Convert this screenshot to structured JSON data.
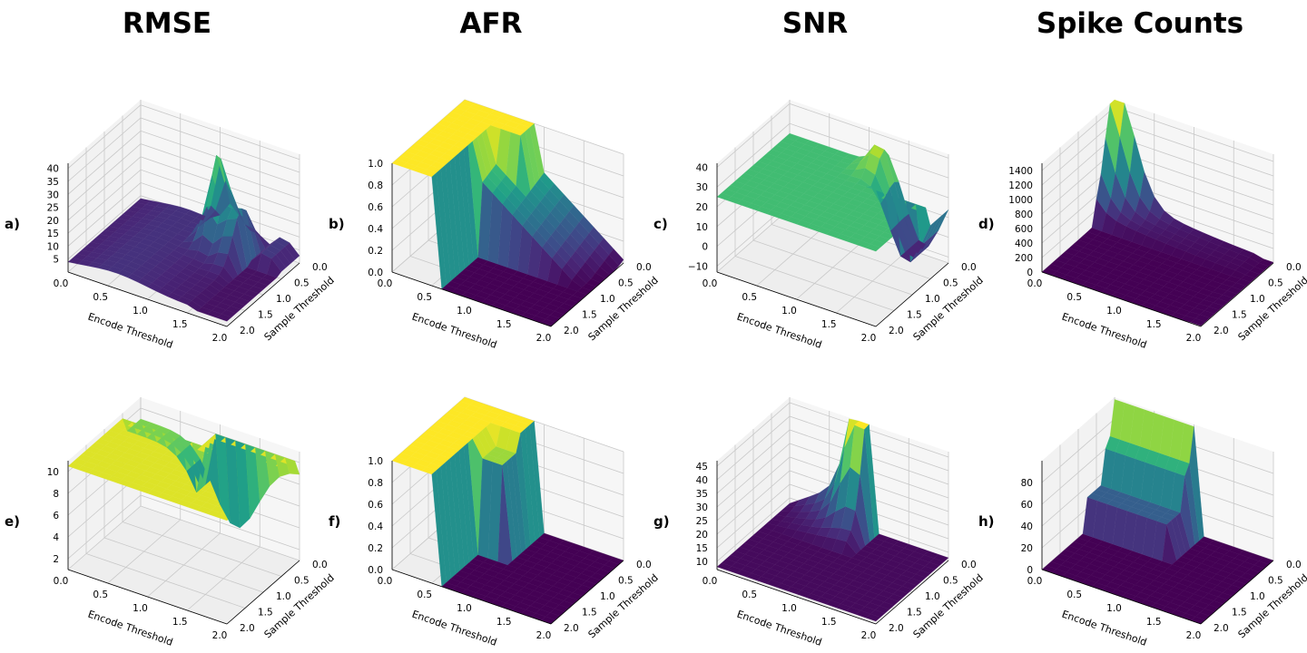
{
  "columns": [
    "RMSE",
    "AFR",
    "SNR",
    "Spike Counts"
  ],
  "axis_labels": {
    "x": "Encode Threshold",
    "y": "Sample Threshold"
  },
  "chart_data": [
    {
      "panel": "a)",
      "type": "surface",
      "metric": "RMSE",
      "xlabel": "Encode Threshold",
      "ylabel": "Sample Threshold",
      "xlim": [
        0,
        2
      ],
      "ylim": [
        0,
        2
      ],
      "zlim": [
        0,
        42
      ],
      "xticks": [
        "0.0",
        "0.5",
        "1.0",
        "1.5",
        "2.0"
      ],
      "yticks": [
        "0.0",
        "0.5",
        "1.0",
        "1.5",
        "2.0"
      ],
      "zticks": [
        "5",
        "10",
        "15",
        "20",
        "25",
        "30",
        "35",
        "40"
      ],
      "zticks_v": [
        5,
        10,
        15,
        20,
        25,
        30,
        35,
        40
      ],
      "surface": {
        "base": 2,
        "ridge_height": 36,
        "ridge_x": 1.2,
        "ridge_y": 0.5,
        "ridge_width": 0.35,
        "plateau_height": 6,
        "plateau_x_max": 1.0
      }
    },
    {
      "panel": "b)",
      "type": "surface",
      "metric": "AFR",
      "xlabel": "Encode Threshold",
      "ylabel": "Sample Threshold",
      "xlim": [
        0,
        2
      ],
      "ylim": [
        0,
        2
      ],
      "zlim": [
        0,
        1
      ],
      "xticks": [
        "0.0",
        "0.5",
        "1.0",
        "1.5",
        "2.0"
      ],
      "yticks": [
        "0.0",
        "0.5",
        "1.0",
        "1.5",
        "2.0"
      ],
      "zticks": [
        "0.0",
        "0.2",
        "0.4",
        "0.6",
        "0.8",
        "1.0"
      ],
      "zticks_v": [
        0,
        0.2,
        0.4,
        0.6,
        0.8,
        1.0
      ],
      "surface": {
        "high": 1.0,
        "low": 0.0,
        "step_x": 1.0,
        "slope_to": 2.0
      }
    },
    {
      "panel": "c)",
      "type": "surface",
      "metric": "SNR",
      "xlabel": "Encode Threshold",
      "ylabel": "Sample Threshold",
      "xlim": [
        0,
        2
      ],
      "ylim": [
        0,
        2
      ],
      "zlim": [
        -13,
        42
      ],
      "xticks": [
        "0.0",
        "0.5",
        "1.0",
        "1.5",
        "2.0"
      ],
      "yticks": [
        "0.0",
        "0.5",
        "1.0",
        "1.5",
        "2.0"
      ],
      "zticks": [
        "−10",
        "0",
        "10",
        "20",
        "30",
        "40"
      ],
      "zticks_v": [
        -10,
        0,
        10,
        20,
        30,
        40
      ],
      "surface": {
        "plateau": 25,
        "peak": 40,
        "dip": -11,
        "dip_x": 1.5
      }
    },
    {
      "panel": "d)",
      "type": "surface",
      "metric": "Spike Counts",
      "xlabel": "Encode Threshold",
      "ylabel": "Sample Threshold",
      "xlim": [
        0,
        2
      ],
      "ylim": [
        0,
        2
      ],
      "zlim": [
        0,
        1500
      ],
      "xticks": [
        "0.0",
        "0.5",
        "1.0",
        "1.5",
        "2.0"
      ],
      "yticks": [
        "0.0",
        "0.5",
        "1.0",
        "1.5",
        "2.0"
      ],
      "zticks": [
        "0",
        "200",
        "400",
        "600",
        "800",
        "1000",
        "1200",
        "1400"
      ],
      "zticks_v": [
        0,
        200,
        400,
        600,
        800,
        1000,
        1200,
        1400
      ],
      "surface": {
        "peak": 1450,
        "peak_x": 0.0,
        "peak_y": 0.0,
        "floor": 0
      }
    },
    {
      "panel": "e)",
      "type": "surface",
      "metric": "RMSE",
      "xlabel": "Encode Threshold",
      "ylabel": "Sample Threshold",
      "xlim": [
        0,
        2
      ],
      "ylim": [
        0,
        2
      ],
      "zlim": [
        1,
        11
      ],
      "xticks": [
        "0.0",
        "0.5",
        "1.0",
        "1.5",
        "2.0"
      ],
      "yticks": [
        "0.0",
        "0.5",
        "1.0",
        "1.5",
        "2.0"
      ],
      "zticks": [
        "2",
        "4",
        "6",
        "8",
        "10"
      ],
      "zticks_v": [
        2,
        4,
        6,
        8,
        10
      ],
      "surface": {
        "plateau": 10.5,
        "valley": 1.5,
        "valley_x": 1.0,
        "left_level": 9
      }
    },
    {
      "panel": "f)",
      "type": "surface",
      "metric": "AFR",
      "xlabel": "Encode Threshold",
      "ylabel": "Sample Threshold",
      "xlim": [
        0,
        2
      ],
      "ylim": [
        0,
        2
      ],
      "zlim": [
        0,
        1
      ],
      "xticks": [
        "0.0",
        "0.5",
        "1.0",
        "1.5",
        "2.0"
      ],
      "yticks": [
        "0.0",
        "0.5",
        "1.0",
        "1.5",
        "2.0"
      ],
      "zticks": [
        "0.0",
        "0.2",
        "0.4",
        "0.6",
        "0.8",
        "1.0"
      ],
      "zticks_v": [
        0,
        0.2,
        0.4,
        0.6,
        0.8,
        1.0
      ],
      "surface": {
        "high": 1.0,
        "low": 0.0,
        "step_x": 1.0
      }
    },
    {
      "panel": "g)",
      "type": "surface",
      "metric": "SNR",
      "xlabel": "Encode Threshold",
      "ylabel": "Sample Threshold",
      "xlim": [
        0,
        2
      ],
      "ylim": [
        0,
        2
      ],
      "zlim": [
        7,
        47
      ],
      "xticks": [
        "0.0",
        "0.5",
        "1.0",
        "1.5",
        "2.0"
      ],
      "yticks": [
        "0.0",
        "0.5",
        "1.0",
        "1.5",
        "2.0"
      ],
      "zticks": [
        "10",
        "15",
        "20",
        "25",
        "30",
        "35",
        "40",
        "45"
      ],
      "zticks_v": [
        10,
        15,
        20,
        25,
        30,
        35,
        40,
        45
      ],
      "surface": {
        "peak": 45,
        "peak_x": 0.9,
        "floor": 8
      }
    },
    {
      "panel": "h)",
      "type": "surface",
      "metric": "Spike Counts",
      "xlabel": "Encode Threshold",
      "ylabel": "Sample Threshold",
      "xlim": [
        0,
        2
      ],
      "ylim": [
        0,
        2
      ],
      "zlim": [
        0,
        100
      ],
      "xticks": [
        "0.0",
        "0.5",
        "1.0",
        "1.5",
        "2.0"
      ],
      "yticks": [
        "0.0",
        "0.5",
        "1.0",
        "1.5",
        "2.0"
      ],
      "zticks": [
        "0",
        "20",
        "40",
        "60",
        "80"
      ],
      "zticks_v": [
        0,
        20,
        40,
        60,
        80
      ],
      "surface": {
        "peak": 98,
        "mid": 30,
        "floor": 0,
        "step_x": 1.0
      }
    }
  ],
  "colors": {
    "colormap": "viridis",
    "pane": "#f2f2f2",
    "grid": "#c8c8c8",
    "edge": "#e8e8e8"
  }
}
